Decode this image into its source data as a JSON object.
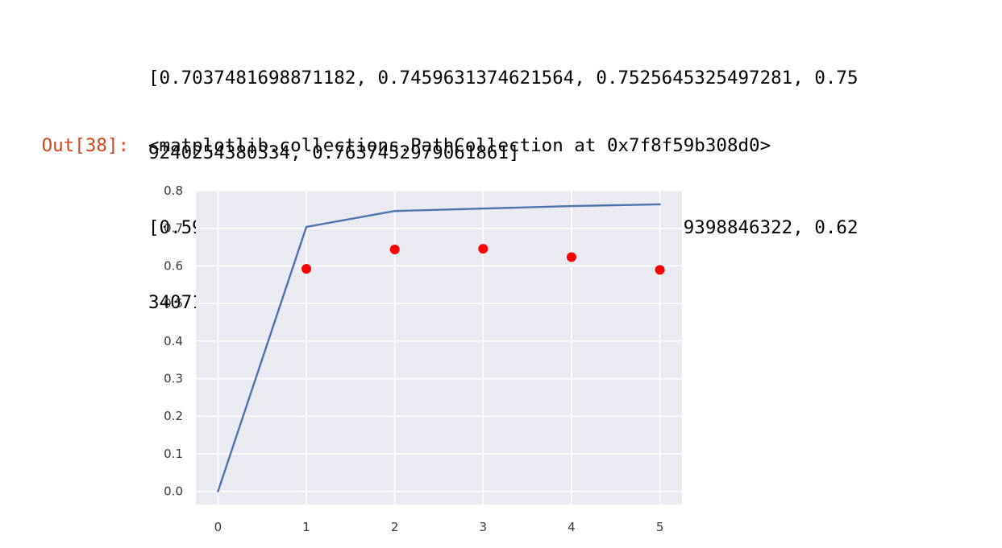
{
  "cell": {
    "stdout_lines": [
      "[0.7037481698871182, 0.7459631374621564, 0.7525645325497281, 0.75",
      "9240254380334, 0.7637452979061861]",
      "[0.5921403525688523, 0.6436031842775167, 0.6454539398846322, 0.62",
      "3407186347454, 0.5893365958750109]"
    ],
    "out_prompt": "Out[38]:",
    "out_text": "<matplotlib.collections.PathCollection at 0x7f8f59b308d0>"
  },
  "colors": {
    "plot_background": "#eaeaf2",
    "grid": "#ffffff",
    "line_series": "#4c72b0",
    "scatter_series": "#ff0000",
    "out_prompt": "#d84315"
  },
  "chart_data": {
    "type": "line",
    "title": "",
    "xlabel": "",
    "ylabel": "",
    "grid": true,
    "xlim": [
      -0.25,
      5.25
    ],
    "ylim": [
      -0.035,
      0.8
    ],
    "x_ticks": [
      0,
      1,
      2,
      3,
      4,
      5
    ],
    "x_tick_labels": [
      "0",
      "1",
      "2",
      "3",
      "4",
      "5"
    ],
    "y_ticks": [
      0.0,
      0.1,
      0.2,
      0.3,
      0.4,
      0.5,
      0.6,
      0.7,
      0.8
    ],
    "y_tick_labels": [
      "0.0",
      "0.1",
      "0.2",
      "0.3",
      "0.4",
      "0.5",
      "0.6",
      "0.7",
      "0.8"
    ],
    "series": [
      {
        "kind": "line",
        "x": [
          0,
          1,
          2,
          3,
          4,
          5
        ],
        "values": [
          0.0,
          0.7037481698871182,
          0.7459631374621564,
          0.7525645325497281,
          0.759240254380334,
          0.7637452979061861
        ]
      },
      {
        "kind": "scatter",
        "x": [
          1,
          2,
          3,
          4,
          5
        ],
        "values": [
          0.5921403525688523,
          0.6436031842775167,
          0.6454539398846322,
          0.623407186347454,
          0.5893365958750109
        ]
      }
    ]
  }
}
